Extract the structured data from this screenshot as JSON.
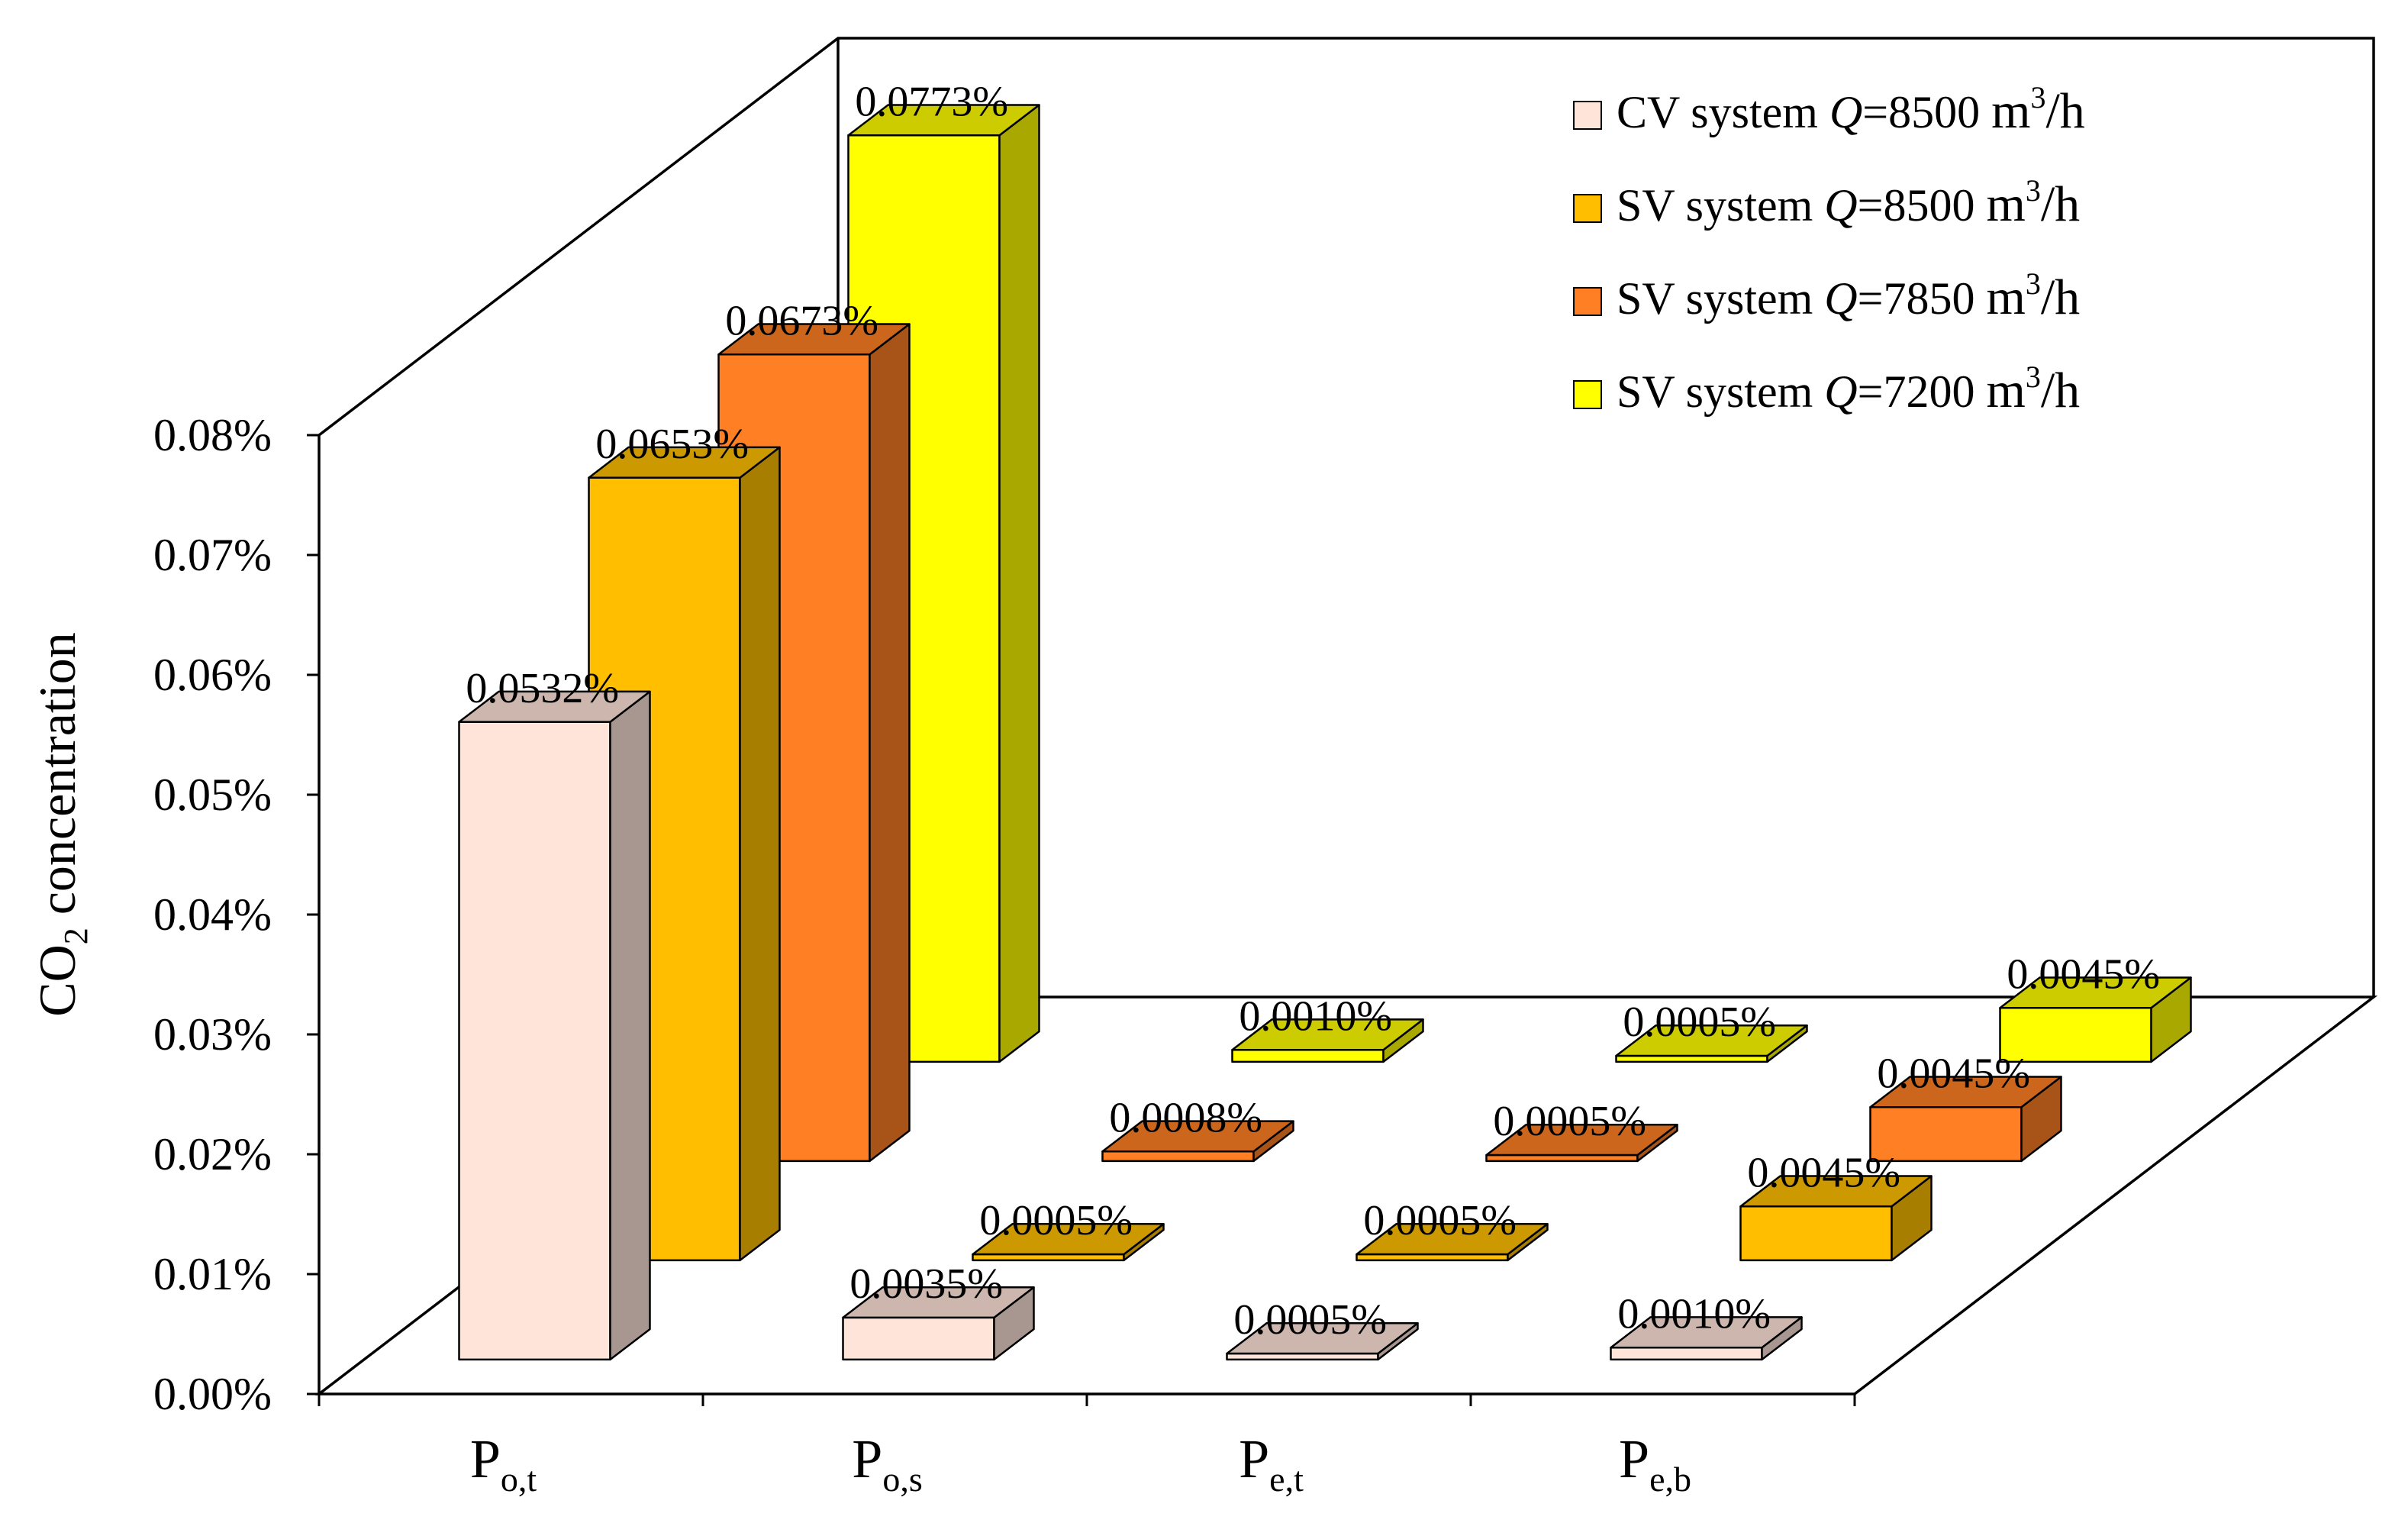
{
  "chart_data": {
    "type": "bar",
    "style": "3d-clustered-column",
    "title": "",
    "xlabel": "",
    "ylabel": {
      "prefix": "CO",
      "subscript": "2",
      "suffix": " concentration"
    },
    "ylim": [
      0,
      0.08
    ],
    "yticks": [
      {
        "value": 0.0,
        "label": "0.00%"
      },
      {
        "value": 0.01,
        "label": "0.01%"
      },
      {
        "value": 0.02,
        "label": "0.02%"
      },
      {
        "value": 0.03,
        "label": "0.03%"
      },
      {
        "value": 0.04,
        "label": "0.04%"
      },
      {
        "value": 0.05,
        "label": "0.05%"
      },
      {
        "value": 0.06,
        "label": "0.06%"
      },
      {
        "value": 0.07,
        "label": "0.07%"
      },
      {
        "value": 0.08,
        "label": "0.08%"
      }
    ],
    "categories": [
      {
        "id": "Po,t",
        "main": "P",
        "sub": "o,t"
      },
      {
        "id": "Po,s",
        "main": "P",
        "sub": "o,s"
      },
      {
        "id": "Pe,t",
        "main": "P",
        "sub": "e,t"
      },
      {
        "id": "Pe,b",
        "main": "P",
        "sub": "e,b"
      }
    ],
    "legend_position": "top-right",
    "series": [
      {
        "name": "CV system Q=8500 m3/h",
        "system": "CV system ",
        "q_symbol": "Q",
        "q_value": "=8500 ",
        "unit_main": "m",
        "unit_sup": "3",
        "unit_tail": "/h",
        "color": "#FFE4DA",
        "values": [
          0.0532,
          0.0035,
          0.0005,
          0.001
        ],
        "labels": [
          "0.0532%",
          "0.0035%",
          "0.0005%",
          "0.0010%"
        ]
      },
      {
        "name": "SV system Q=8500 m3/h",
        "system": "SV system ",
        "q_symbol": "Q",
        "q_value": "=8500 ",
        "unit_main": "m",
        "unit_sup": "3",
        "unit_tail": "/h",
        "color": "#FFBF00",
        "values": [
          0.0653,
          0.0005,
          0.0005,
          0.0045
        ],
        "labels": [
          "0.0653%",
          "0.0005%",
          "0.0005%",
          "0.0045%"
        ]
      },
      {
        "name": "SV system Q=7850 m3/h",
        "system": "SV system ",
        "q_symbol": "Q",
        "q_value": "=7850 ",
        "unit_main": "m",
        "unit_sup": "3",
        "unit_tail": "/h",
        "color": "#FF7F24",
        "values": [
          0.0673,
          0.0008,
          0.0005,
          0.0045
        ],
        "labels": [
          "0.0673%",
          "0.0008%",
          "0.0005%",
          "0.0045%"
        ]
      },
      {
        "name": "SV system Q=7200 m3/h",
        "system": "SV system ",
        "q_symbol": "Q",
        "q_value": "=7200 ",
        "unit_main": "m",
        "unit_sup": "3",
        "unit_tail": "/h",
        "color": "#FFFF00",
        "values": [
          0.0773,
          0.001,
          0.0005,
          0.0045
        ],
        "labels": [
          "0.0773%",
          "0.0010%",
          "0.0005%",
          "0.0045%"
        ]
      }
    ]
  }
}
